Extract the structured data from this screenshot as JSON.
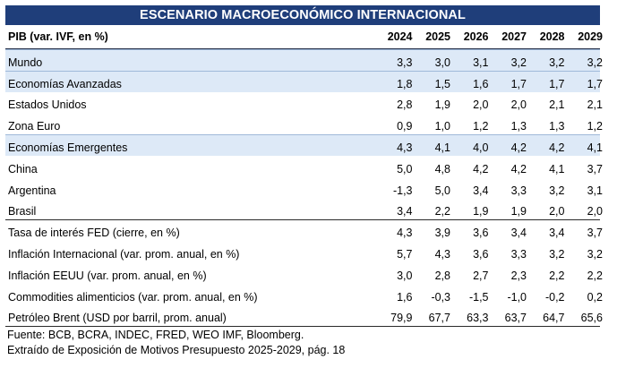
{
  "title": "ESCENARIO MACROECONÓMICO INTERNACIONAL",
  "header": {
    "label": "PIB (var. IVF, en %)",
    "years": [
      "2024",
      "2025",
      "2026",
      "2027",
      "2028",
      "2029"
    ]
  },
  "rows": [
    {
      "label": "Mundo",
      "values": [
        "3,3",
        "3,0",
        "3,1",
        "3,2",
        "3,2",
        "3,2"
      ],
      "shaded": true
    },
    {
      "label": "Economías Avanzadas",
      "values": [
        "1,8",
        "1,5",
        "1,6",
        "1,7",
        "1,7",
        "1,7"
      ],
      "shaded": true
    },
    {
      "label": "Estados Unidos",
      "values": [
        "2,8",
        "1,9",
        "2,0",
        "2,0",
        "2,1",
        "2,1"
      ]
    },
    {
      "label": "Zona Euro",
      "values": [
        "0,9",
        "1,0",
        "1,2",
        "1,3",
        "1,3",
        "1,2"
      ]
    },
    {
      "label": "Economías Emergentes",
      "values": [
        "4,3",
        "4,1",
        "4,0",
        "4,2",
        "4,2",
        "4,1"
      ],
      "shaded": true
    },
    {
      "label": "China",
      "values": [
        "5,0",
        "4,8",
        "4,2",
        "4,2",
        "4,1",
        "3,7"
      ]
    },
    {
      "label": "Argentina",
      "values": [
        "-1,3",
        "5,0",
        "3,4",
        "3,3",
        "3,2",
        "3,1"
      ]
    },
    {
      "label": "Brasil",
      "values": [
        "3,4",
        "2,2",
        "1,9",
        "1,9",
        "2,0",
        "2,0"
      ]
    },
    {
      "label": "Tasa de interés FED (cierre, en %)",
      "values": [
        "4,3",
        "3,9",
        "3,6",
        "3,4",
        "3,4",
        "3,7"
      ],
      "separator": true
    },
    {
      "label": "Inflación Internacional (var. prom. anual, en %)",
      "values": [
        "5,7",
        "4,3",
        "3,6",
        "3,3",
        "3,2",
        "3,2"
      ]
    },
    {
      "label": "Inflación EEUU (var. prom. anual, en %)",
      "values": [
        "3,0",
        "2,8",
        "2,7",
        "2,3",
        "2,2",
        "2,2"
      ]
    },
    {
      "label": "Commodities alimenticios (var. prom. anual, en %)",
      "values": [
        "1,6",
        "-0,3",
        "-1,5",
        "-1,0",
        "-0,2",
        "0,2"
      ]
    },
    {
      "label": "Petróleo Brent (USD por barril, prom. anual)",
      "values": [
        "79,9",
        "67,7",
        "63,3",
        "63,7",
        "64,7",
        "65,6"
      ]
    }
  ],
  "footer": {
    "source": "Fuente: BCB, BCRA, INDEC, FRED, WEO IMF, Bloomberg.",
    "extract": "Extraído de Exposición de Motivos Presupuesto 2025-2029, pág. 18"
  },
  "colors": {
    "title_bg": "#1f3e7a",
    "shaded_row": "#dde9f7"
  }
}
